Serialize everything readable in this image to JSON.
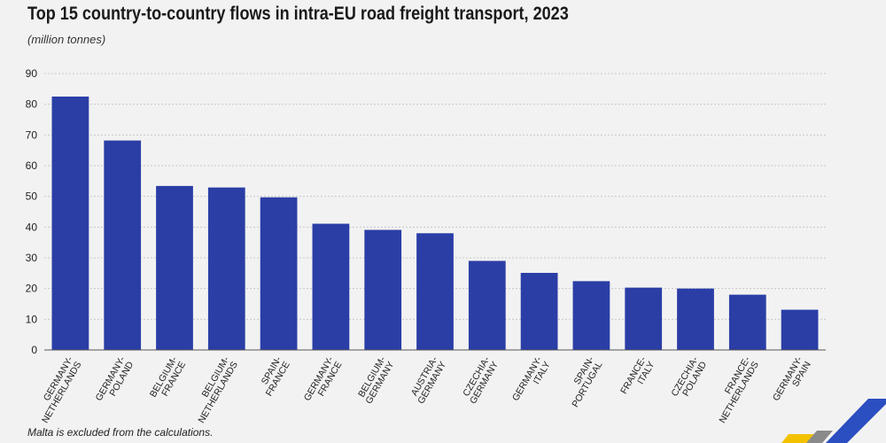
{
  "title": "Top 15 country-to-country flows in intra-EU road freight transport, 2023",
  "subtitle": "(million tonnes)",
  "footnote": "Malta is excluded from the calculations.",
  "colors": {
    "bar": "#2b3ea6",
    "grid": "#c8c8c8",
    "axis": "#555555"
  },
  "chart_data": {
    "type": "bar",
    "title": "Top 15 country-to-country flows in intra-EU road freight transport, 2023",
    "ylabel": "(million tonnes)",
    "xlabel": "",
    "ylim": [
      0,
      90
    ],
    "yticks": [
      0,
      10,
      20,
      30,
      40,
      50,
      60,
      70,
      80,
      90
    ],
    "grid": true,
    "categories": [
      [
        "GERMANY-",
        "NETHERLANDS"
      ],
      [
        "GERMANY-",
        "POLAND"
      ],
      [
        "BELGIUM-",
        "FRANCE"
      ],
      [
        "BELGIUM-",
        "NETHERLANDS"
      ],
      [
        "SPAIN-",
        "FRANCE"
      ],
      [
        "GERMANY-",
        "FRANCE"
      ],
      [
        "BELGIUM-",
        "GERMANY"
      ],
      [
        "AUSTRIA-",
        "GERMANY"
      ],
      [
        "CZECHIA-",
        "GERMANY"
      ],
      [
        "GERMANY-",
        "ITALY"
      ],
      [
        "SPAIN-",
        "PORTUGAL"
      ],
      [
        "FRANCE-",
        "ITALY"
      ],
      [
        "CZECHIA-",
        "POLAND"
      ],
      [
        "FRANCE-",
        "NETHERLANDS"
      ],
      [
        "GERMANY-",
        "SPAIN"
      ]
    ],
    "values": [
      82.5,
      68.2,
      53.4,
      52.9,
      49.7,
      41.1,
      39.1,
      38.0,
      29.0,
      25.1,
      22.4,
      20.3,
      20.0,
      18.0,
      13.1
    ]
  }
}
